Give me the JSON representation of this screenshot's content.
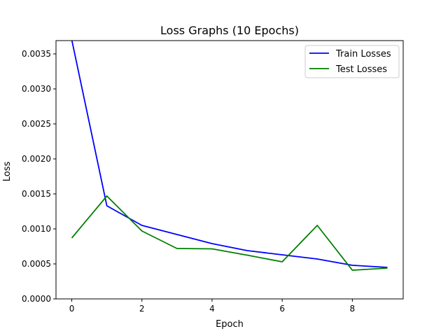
{
  "chart_data": {
    "type": "line",
    "title": "Loss Graphs (10 Epochs)",
    "xlabel": "Epoch",
    "ylabel": "Loss",
    "xlim": [
      -0.45,
      9.45
    ],
    "ylim": [
      0,
      0.00369
    ],
    "x_ticks": [
      0,
      2,
      4,
      6,
      8
    ],
    "x_tick_labels": [
      "0",
      "2",
      "4",
      "6",
      "8"
    ],
    "y_ticks": [
      0,
      0.0005,
      0.001,
      0.0015,
      0.002,
      0.0025,
      0.003,
      0.0035
    ],
    "y_tick_labels": [
      "0.0000",
      "0.0005",
      "0.0010",
      "0.0015",
      "0.0020",
      "0.0025",
      "0.0030",
      "0.0035"
    ],
    "grid": false,
    "legend_position": "top-right",
    "x": [
      0,
      1,
      2,
      3,
      4,
      5,
      6,
      7,
      8,
      9
    ],
    "series": [
      {
        "name": "Train Losses",
        "color": "#0000ff",
        "values": [
          0.0037,
          0.00133,
          0.00105,
          0.00092,
          0.00079,
          0.00069,
          0.00063,
          0.00057,
          0.00048,
          0.00045
        ]
      },
      {
        "name": "Test Losses",
        "color": "#008000",
        "values": [
          0.00087,
          0.00147,
          0.00097,
          0.00072,
          0.000715,
          0.000625,
          0.00053,
          0.00105,
          0.00041,
          0.00044
        ]
      }
    ]
  }
}
